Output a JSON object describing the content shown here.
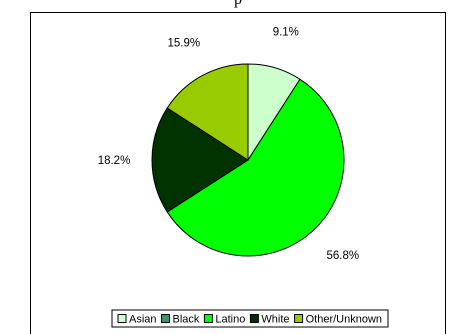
{
  "chart_data": {
    "type": "pie",
    "title": "",
    "visible_title_fragment": "p",
    "slices": [
      {
        "label": "Asian",
        "value": 9.1,
        "display": "9.1%",
        "color": "#ccffcc"
      },
      {
        "label": "Latino",
        "value": 56.8,
        "display": "56.8%",
        "color": "#00ff00"
      },
      {
        "label": "White",
        "value": 18.2,
        "display": "18.2%",
        "color": "#003300"
      },
      {
        "label": "Other/Unknown",
        "value": 15.9,
        "display": "15.9%",
        "color": "#99cc00"
      }
    ],
    "legend": [
      {
        "label": "Asian",
        "color": "#ccffcc"
      },
      {
        "label": "Black",
        "color": "#339966"
      },
      {
        "label": "Latino",
        "color": "#00ff00"
      },
      {
        "label": "White",
        "color": "#003300"
      },
      {
        "label": "Other/Unknown",
        "color": "#99cc00"
      }
    ],
    "legend_position": "bottom"
  }
}
